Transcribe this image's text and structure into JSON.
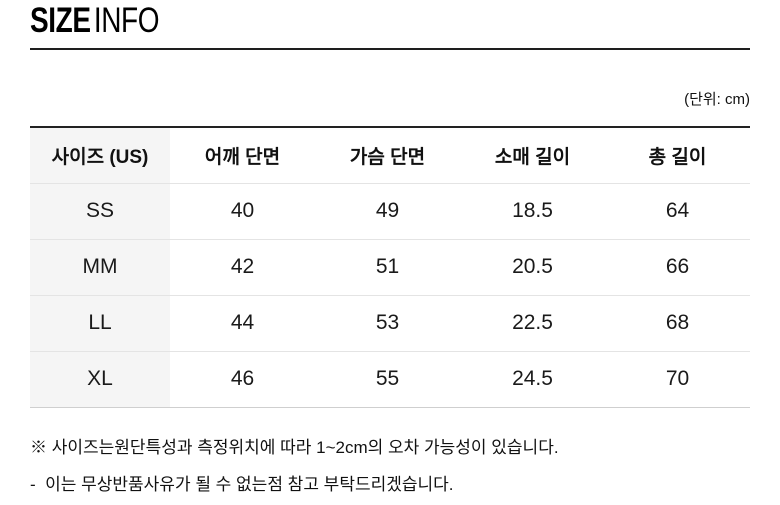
{
  "title": {
    "primary": "SIZE",
    "secondary": "INFO"
  },
  "unit_label": "(단위: cm)",
  "size_table": {
    "headers": [
      "사이즈 (US)",
      "어깨 단면",
      "가슴 단면",
      "소매 길이",
      "총 길이"
    ],
    "rows": [
      {
        "size": "SS",
        "shoulder": "40",
        "chest": "49",
        "sleeve": "18.5",
        "length": "64"
      },
      {
        "size": "MM",
        "shoulder": "42",
        "chest": "51",
        "sleeve": "20.5",
        "length": "66"
      },
      {
        "size": "LL",
        "shoulder": "44",
        "chest": "53",
        "sleeve": "22.5",
        "length": "68"
      },
      {
        "size": "XL",
        "shoulder": "46",
        "chest": "55",
        "sleeve": "24.5",
        "length": "70"
      }
    ]
  },
  "notes": [
    "※ 사이즈는원단특성과 측정위치에 따라 1~2cm의 오차 가능성이 있습니다.",
    "-  이는 무상반품사유가 될 수 없는점 참고 부탁드리겠습니다."
  ],
  "colors": {
    "text": "#111111",
    "table_top_border": "#222222",
    "row_divider": "#e4e4e4",
    "bottom_border": "#cfcfcf",
    "first_col_bg": "#f5f5f5"
  }
}
